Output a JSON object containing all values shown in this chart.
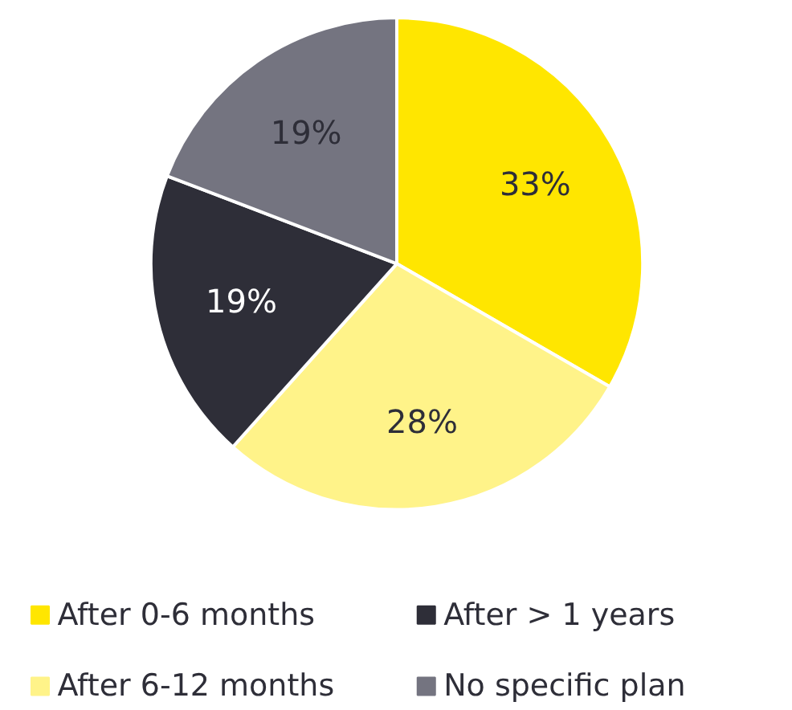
{
  "chart_data": {
    "type": "pie",
    "categories": [
      "After 0-6 months",
      "After 6-12 months",
      "After > 1 years",
      "No specific plan"
    ],
    "values": [
      33,
      28,
      19,
      19
    ],
    "colors": [
      "#ffe600",
      "#fff389",
      "#2e2e38",
      "#747480"
    ],
    "value_labels": [
      "33%",
      "28%",
      "19%",
      "19%"
    ],
    "legend": "bottom"
  }
}
